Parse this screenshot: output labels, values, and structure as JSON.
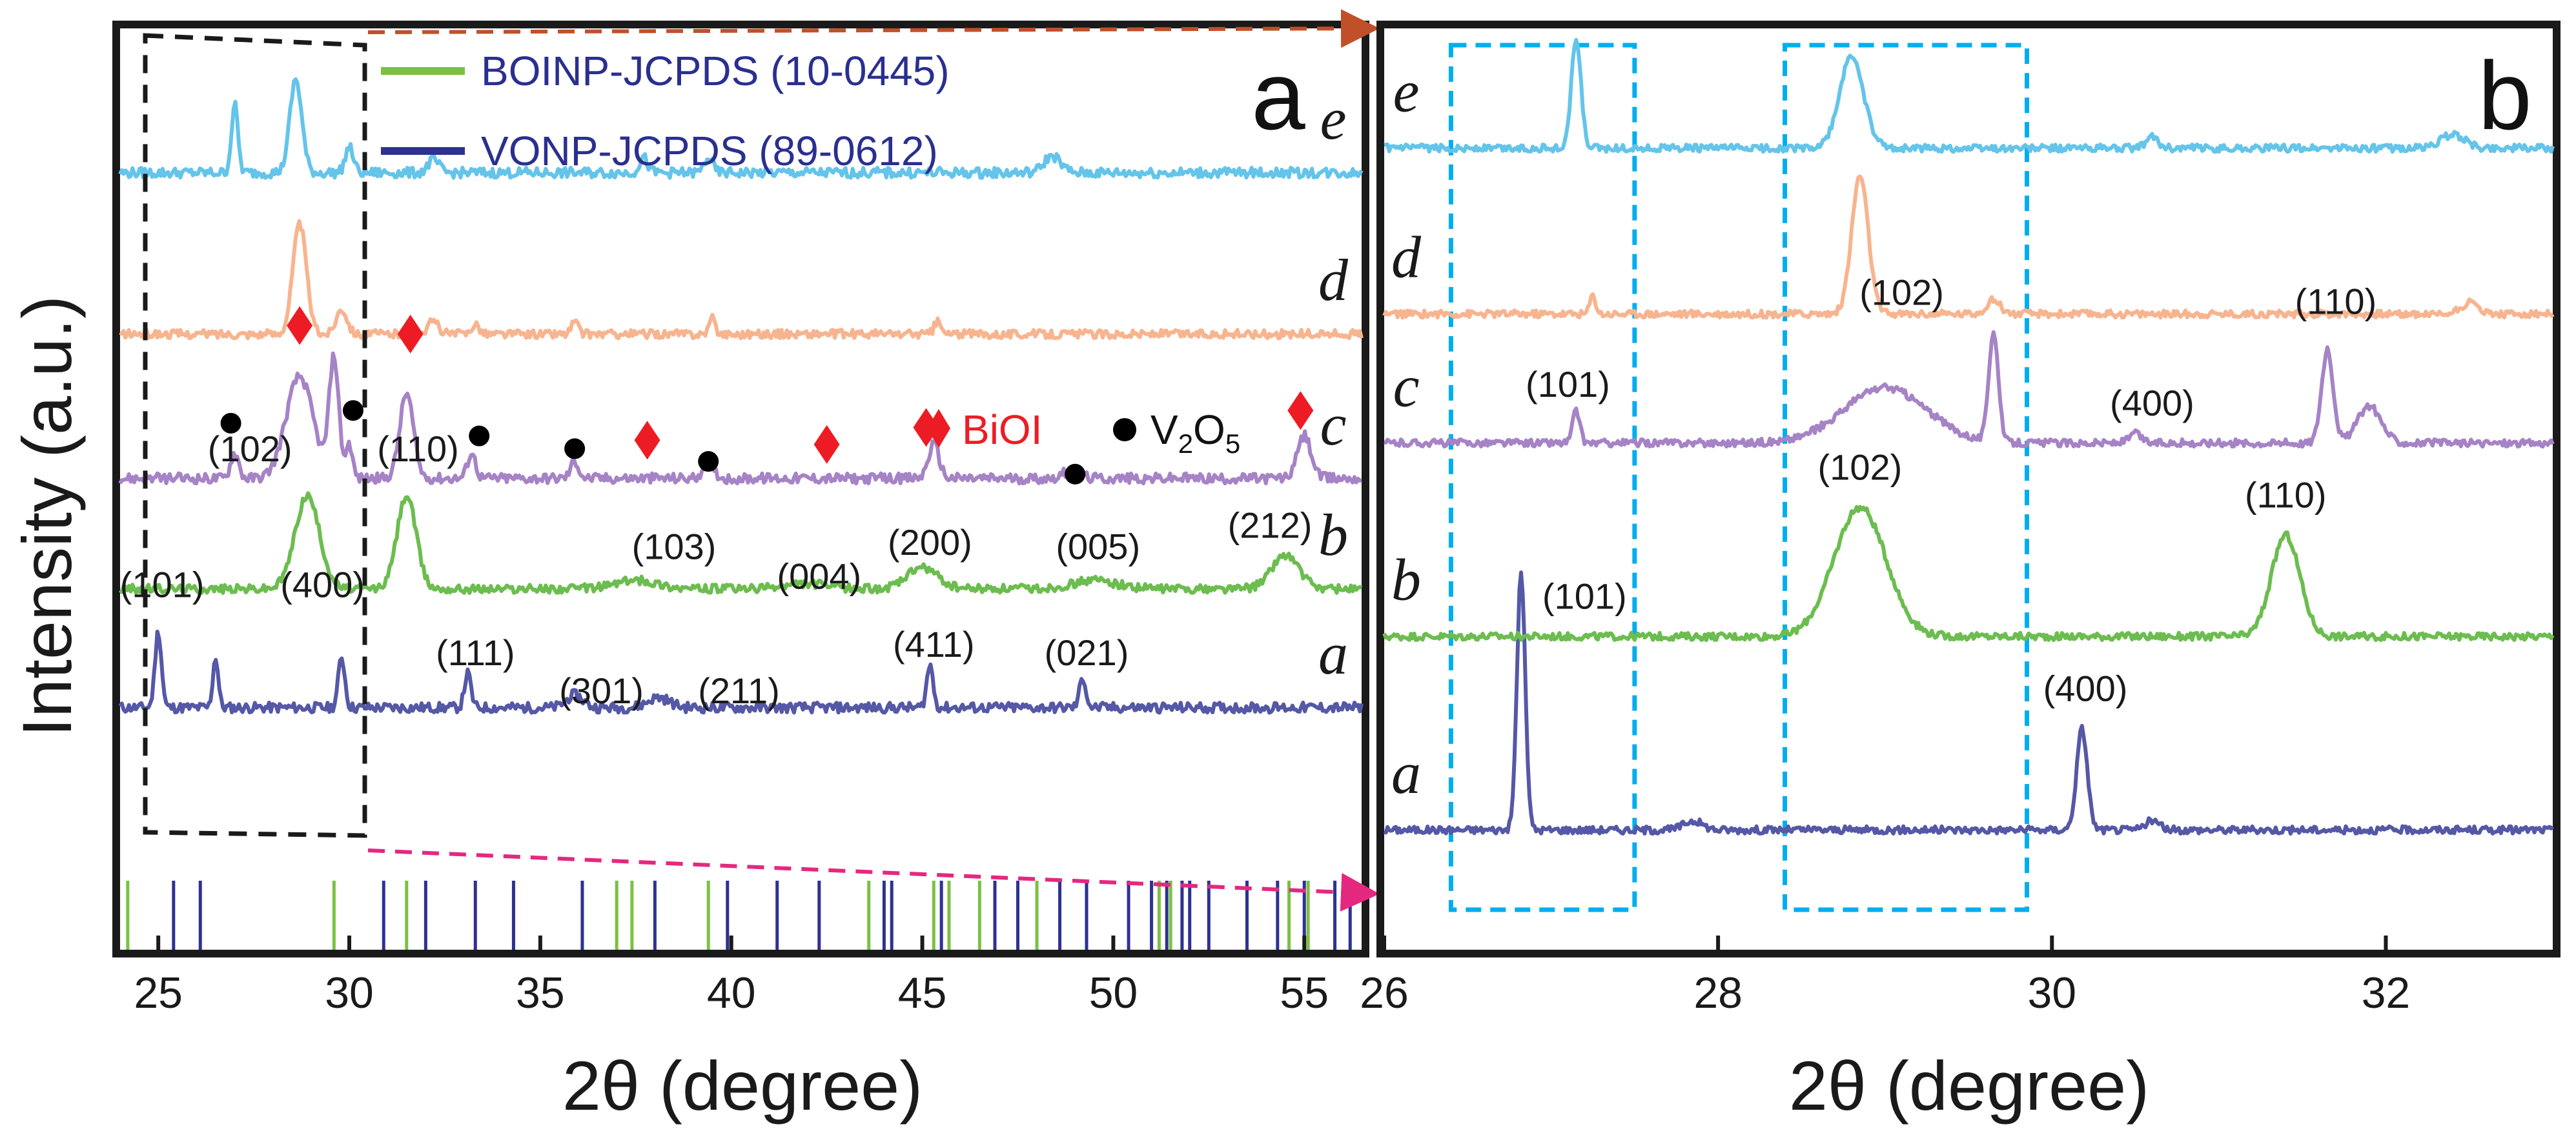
{
  "figure": {
    "ylabel": "Intensity (a.u.)",
    "colors": {
      "a": "#5558a6",
      "b": "#6cbd4f",
      "c": "#a683c6",
      "d": "#f7b48f",
      "e": "#64c4ea",
      "bolt": "#7ac143",
      "vonp": "#2e3192",
      "biol": "#ed1c24",
      "v2o5": "#000000",
      "zoom_box": "#00aeef",
      "arrow_top": "#c0502a",
      "arrow_bottom": "#e5287f"
    }
  },
  "chart_data": [
    {
      "type": "line",
      "panel_label": "a",
      "xlabel": "2θ (degree)",
      "ylabel": "Intensity (a.u.)",
      "xlim": [
        24,
        56.5
      ],
      "xticks": [
        25,
        30,
        35,
        40,
        45,
        50,
        55
      ],
      "xtick_labels": [
        "25",
        "30",
        "35",
        "40",
        "45",
        "50",
        "55"
      ],
      "legend": [
        {
          "label": "BOINP-JCPDS (10-0445)",
          "color": "#7ac143"
        },
        {
          "label": "VONP-JCPDS (89-0612)",
          "color": "#2e3192"
        }
      ],
      "series": [
        {
          "name": "a",
          "color": "#5558a6",
          "baseline": 0.2,
          "noise": 0.006,
          "peaks": [
            [
              25.0,
              0.09,
              0.12
            ],
            [
              26.5,
              0.06,
              0.1
            ],
            [
              29.8,
              0.06,
              0.12
            ],
            [
              33.1,
              0.04,
              0.12
            ],
            [
              35.9,
              0.015,
              0.3
            ],
            [
              38.1,
              0.012,
              0.4
            ],
            [
              45.2,
              0.05,
              0.12
            ],
            [
              49.2,
              0.035,
              0.12
            ]
          ]
        },
        {
          "name": "b",
          "color": "#6cbd4f",
          "baseline": 0.34,
          "noise": 0.005,
          "peaks": [
            [
              28.9,
              0.11,
              0.45
            ],
            [
              31.5,
              0.11,
              0.35
            ],
            [
              37.5,
              0.01,
              0.8
            ],
            [
              42.0,
              0.006,
              0.8
            ],
            [
              45.0,
              0.025,
              0.55
            ],
            [
              49.5,
              0.01,
              0.8
            ],
            [
              54.5,
              0.04,
              0.5
            ]
          ]
        },
        {
          "name": "c",
          "color": "#a683c6",
          "baseline": 0.47,
          "noise": 0.006,
          "peaks": [
            [
              27.0,
              0.03,
              0.15
            ],
            [
              28.7,
              0.12,
              0.5
            ],
            [
              29.6,
              0.14,
              0.18
            ],
            [
              30.0,
              0.04,
              0.12
            ],
            [
              31.5,
              0.1,
              0.25
            ],
            [
              33.2,
              0.03,
              0.15
            ],
            [
              35.9,
              0.02,
              0.15
            ],
            [
              39.4,
              0.02,
              0.2
            ],
            [
              45.3,
              0.04,
              0.2
            ],
            [
              48.9,
              0.01,
              0.3
            ],
            [
              55.0,
              0.05,
              0.25
            ]
          ]
        },
        {
          "name": "d",
          "color": "#f7b48f",
          "baseline": 0.64,
          "noise": 0.005,
          "peaks": [
            [
              28.7,
              0.13,
              0.25
            ],
            [
              29.8,
              0.03,
              0.2
            ],
            [
              32.2,
              0.015,
              0.2
            ],
            [
              33.3,
              0.012,
              0.15
            ],
            [
              35.9,
              0.015,
              0.12
            ],
            [
              39.5,
              0.018,
              0.12
            ],
            [
              45.4,
              0.015,
              0.12
            ]
          ]
        },
        {
          "name": "e",
          "color": "#64c4ea",
          "baseline": 0.83,
          "noise": 0.006,
          "peaks": [
            [
              27.0,
              0.08,
              0.12
            ],
            [
              28.6,
              0.11,
              0.22
            ],
            [
              30.0,
              0.03,
              0.15
            ],
            [
              32.2,
              0.015,
              0.2
            ],
            [
              37.7,
              0.018,
              0.15
            ],
            [
              39.4,
              0.018,
              0.15
            ],
            [
              48.4,
              0.02,
              0.3
            ]
          ]
        }
      ],
      "series_labels": [
        "a",
        "b",
        "c",
        "d",
        "e"
      ],
      "reference_lines": {
        "BOINP": {
          "color": "#7ac143",
          "positions": [
            24.2,
            29.6,
            31.5,
            37.0,
            37.4,
            39.4,
            43.6,
            45.3,
            45.7,
            46.5,
            48.0,
            51.2,
            51.5,
            54.6,
            55.1
          ]
        },
        "VONP": {
          "color": "#2e3192",
          "positions": [
            25.4,
            26.1,
            30.9,
            32.0,
            33.3,
            34.3,
            36.1,
            38.0,
            39.9,
            41.2,
            42.3,
            44.0,
            44.2,
            45.5,
            46.9,
            47.5,
            48.6,
            49.3,
            50.4,
            51.0,
            51.4,
            51.8,
            52.0,
            52.5,
            53.5,
            54.3,
            55.0,
            55.8,
            56.2
          ]
        }
      },
      "annotations_a": [
        {
          "text": "(101)",
          "x": 25.1
        },
        {
          "text": "(400)",
          "x": 29.3
        },
        {
          "text": "(111)",
          "x": 33.3
        },
        {
          "text": "(301)",
          "x": 36.6
        },
        {
          "text": "(211)",
          "x": 40.2
        },
        {
          "text": "(411)",
          "x": 45.3
        },
        {
          "text": "(021)",
          "x": 49.3
        }
      ],
      "annotations_b": [
        {
          "text": "(102)",
          "x": 27.4
        },
        {
          "text": "(110)",
          "x": 31.8
        },
        {
          "text": "(103)",
          "x": 38.5
        },
        {
          "text": "(004)",
          "x": 42.3
        },
        {
          "text": "(200)",
          "x": 45.2
        },
        {
          "text": "(005)",
          "x": 49.6
        },
        {
          "text": "(212)",
          "x": 54.1
        }
      ],
      "biol_markers": [
        28.7,
        31.6,
        37.8,
        42.5,
        45.1,
        54.9
      ],
      "v2o5_markers": [
        26.9,
        30.1,
        33.4,
        35.9,
        39.4,
        49.0
      ],
      "marker_legend": {
        "biol": "BiOI",
        "v2o5": "V",
        "v2o5_sub": "2",
        "v2o5_o": "O",
        "v2o5_sub2": "5"
      }
    },
    {
      "type": "line",
      "panel_label": "b",
      "xlabel": "2θ (degree)",
      "xlim": [
        26,
        33
      ],
      "xticks": [
        26,
        28,
        30,
        32
      ],
      "xtick_labels": [
        "26",
        "28",
        "30",
        "32"
      ],
      "series": [
        {
          "name": "a",
          "color": "#5558a6",
          "baseline": 0.13,
          "noise": 0.004,
          "peaks": [
            [
              26.82,
              0.28,
              0.035
            ],
            [
              27.85,
              0.01,
              0.08
            ],
            [
              30.18,
              0.11,
              0.045
            ],
            [
              30.6,
              0.01,
              0.06
            ]
          ]
        },
        {
          "name": "b",
          "color": "#6cbd4f",
          "baseline": 0.34,
          "noise": 0.004,
          "peaks": [
            [
              28.85,
              0.14,
              0.22
            ],
            [
              31.4,
              0.11,
              0.12
            ]
          ]
        },
        {
          "name": "c",
          "color": "#a683c6",
          "baseline": 0.55,
          "noise": 0.004,
          "peaks": [
            [
              27.15,
              0.035,
              0.03
            ],
            [
              29.0,
              0.06,
              0.35
            ],
            [
              29.65,
              0.12,
              0.04
            ],
            [
              30.5,
              0.01,
              0.05
            ],
            [
              31.65,
              0.1,
              0.05
            ],
            [
              31.9,
              0.04,
              0.1
            ]
          ]
        },
        {
          "name": "d",
          "color": "#f7b48f",
          "baseline": 0.69,
          "noise": 0.004,
          "peaks": [
            [
              27.25,
              0.02,
              0.025
            ],
            [
              28.85,
              0.15,
              0.07
            ],
            [
              29.65,
              0.015,
              0.06
            ],
            [
              32.5,
              0.012,
              0.08
            ]
          ]
        },
        {
          "name": "e",
          "color": "#64c4ea",
          "baseline": 0.87,
          "noise": 0.004,
          "peaks": [
            [
              27.15,
              0.12,
              0.04
            ],
            [
              28.8,
              0.1,
              0.1
            ],
            [
              30.6,
              0.012,
              0.05
            ],
            [
              32.4,
              0.015,
              0.1
            ]
          ]
        }
      ],
      "series_labels": [
        "a",
        "b",
        "c",
        "d",
        "e"
      ],
      "annotations_a": [
        {
          "text": "(101)",
          "x": 27.2
        },
        {
          "text": "(400)",
          "x": 30.2
        }
      ],
      "annotations_b": [
        {
          "text": "(102)",
          "x": 28.85
        },
        {
          "text": "(110)",
          "x": 31.4
        }
      ],
      "annotations_c": [
        {
          "text": "(101)",
          "x": 27.1
        },
        {
          "text": "(102)",
          "x": 29.1
        },
        {
          "text": "(400)",
          "x": 30.6
        },
        {
          "text": "(110)",
          "x": 31.7
        }
      ],
      "zoom_boxes": [
        [
          26.4,
          27.5
        ],
        [
          28.4,
          29.85
        ]
      ]
    }
  ]
}
